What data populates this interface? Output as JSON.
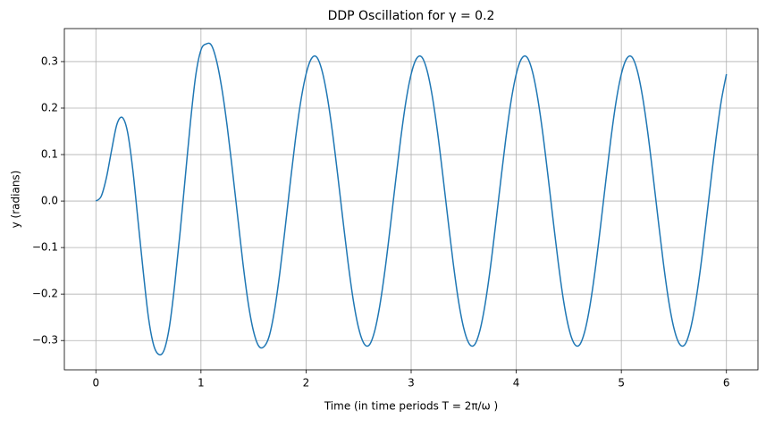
{
  "chart_data": {
    "type": "line",
    "title": "DDP Oscillation for γ = 0.2",
    "xlabel": "Time (in time periods T = 2π/ω )",
    "ylabel": "y (radians)",
    "x": [
      0,
      0.05,
      0.1,
      0.15,
      0.2,
      0.25,
      0.3,
      0.35,
      0.4,
      0.45,
      0.5,
      0.55,
      0.6,
      0.65,
      0.7,
      0.75,
      0.8,
      0.85,
      0.9,
      0.95,
      1,
      1.05,
      1.1,
      1.15,
      1.2,
      1.25,
      1.3,
      1.35,
      1.4,
      1.45,
      1.5,
      1.55,
      1.6,
      1.65,
      1.7,
      1.75,
      1.8,
      1.85,
      1.9,
      1.95,
      2,
      2.05,
      2.1,
      2.15,
      2.2,
      2.25,
      2.3,
      2.35,
      2.4,
      2.45,
      2.5,
      2.55,
      2.6,
      2.65,
      2.7,
      2.75,
      2.8,
      2.85,
      2.9,
      2.95,
      3,
      3.05,
      3.1,
      3.15,
      3.2,
      3.25,
      3.3,
      3.35,
      3.4,
      3.45,
      3.5,
      3.55,
      3.6,
      3.65,
      3.7,
      3.75,
      3.8,
      3.85,
      3.9,
      3.95,
      4,
      4.05,
      4.1,
      4.15,
      4.2,
      4.25,
      4.3,
      4.35,
      4.4,
      4.45,
      4.5,
      4.55,
      4.6,
      4.65,
      4.7,
      4.75,
      4.8,
      4.85,
      4.9,
      4.95,
      5,
      5.05,
      5.1,
      5.15,
      5.2,
      5.25,
      5.3,
      5.35,
      5.4,
      5.45,
      5.5,
      5.55,
      5.6,
      5.65,
      5.7,
      5.75,
      5.8,
      5.85,
      5.9,
      5.95,
      6
    ],
    "series": [
      {
        "name": "y",
        "color": "#1f77b4",
        "values": [
          0,
          0.01,
          0.05,
          0.11,
          0.165,
          0.18,
          0.15,
          0.07,
          -0.04,
          -0.15,
          -0.25,
          -0.31,
          -0.33,
          -0.32,
          -0.27,
          -0.18,
          -0.07,
          0.05,
          0.17,
          0.27,
          0.325,
          0.338,
          0.335,
          0.3,
          0.24,
          0.16,
          0.065,
          -0.035,
          -0.135,
          -0.22,
          -0.28,
          -0.312,
          -0.313,
          -0.29,
          -0.235,
          -0.155,
          -0.06,
          0.04,
          0.135,
          0.215,
          0.273,
          0.306,
          0.31,
          0.282,
          0.227,
          0.15,
          0.058,
          -0.039,
          -0.133,
          -0.214,
          -0.273,
          -0.306,
          -0.31,
          -0.282,
          -0.227,
          -0.15,
          -0.058,
          0.039,
          0.133,
          0.214,
          0.273,
          0.306,
          0.31,
          0.282,
          0.227,
          0.15,
          0.058,
          -0.039,
          -0.133,
          -0.214,
          -0.273,
          -0.306,
          -0.31,
          -0.282,
          -0.227,
          -0.15,
          -0.058,
          0.039,
          0.133,
          0.214,
          0.273,
          0.306,
          0.31,
          0.282,
          0.227,
          0.15,
          0.058,
          -0.039,
          -0.133,
          -0.214,
          -0.273,
          -0.306,
          -0.31,
          -0.282,
          -0.227,
          -0.15,
          -0.058,
          0.039,
          0.133,
          0.214,
          0.273,
          0.306,
          0.31,
          0.282,
          0.227,
          0.15,
          0.058,
          -0.039,
          -0.133,
          -0.214,
          -0.273,
          -0.306,
          -0.31,
          -0.282,
          -0.227,
          -0.15,
          -0.058,
          0.039,
          0.133,
          0.214,
          0.273
        ]
      }
    ],
    "xlim": [
      -0.3,
      6.3
    ],
    "xticks": [
      0,
      1,
      2,
      3,
      4,
      5,
      6
    ],
    "ylim": [
      -0.363,
      0.371
    ],
    "yticks": [
      {
        "value": -0.3,
        "label": "−0.3"
      },
      {
        "value": -0.2,
        "label": "−0.2"
      },
      {
        "value": -0.1,
        "label": "−0.1"
      },
      {
        "value": 0,
        "label": "0.0"
      },
      {
        "value": 0.1,
        "label": "0.1"
      },
      {
        "value": 0.2,
        "label": "0.2"
      },
      {
        "value": 0.3,
        "label": "0.3"
      }
    ],
    "grid": true
  }
}
